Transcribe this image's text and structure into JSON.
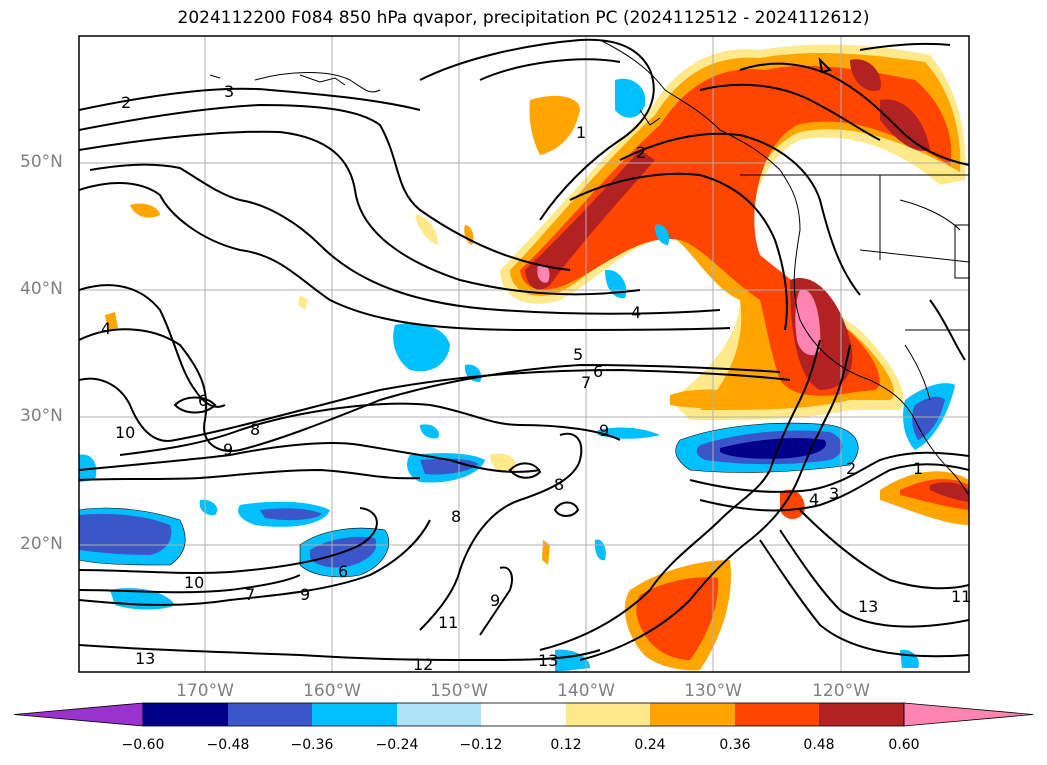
{
  "title": "2024112200 F084 850 hPa qvapor, precipitation PC (2024112512 - 2024112612)",
  "map": {
    "lat_labels": [
      "50°N",
      "40°N",
      "30°N",
      "20°N"
    ],
    "lon_labels": [
      "170°W",
      "160°W",
      "150°W",
      "140°W",
      "130°W",
      "120°W"
    ],
    "contour_labels": [
      "2",
      "3",
      "1",
      "2",
      "4",
      "5",
      "6",
      "7",
      "6",
      "10",
      "8",
      "9",
      "9",
      "8",
      "8",
      "10",
      "6",
      "7",
      "9",
      "11",
      "9",
      "13",
      "12",
      "13",
      "2",
      "4",
      "3",
      "1",
      "11",
      "13",
      "4"
    ]
  },
  "colorbar": {
    "ticks": [
      "−0.60",
      "−0.48",
      "−0.36",
      "−0.24",
      "−0.12",
      "0.12",
      "0.24",
      "0.36",
      "0.48",
      "0.60"
    ],
    "colors": [
      "#9a32cd",
      "#00008b",
      "#3a56c8",
      "#00bfff",
      "#aee2f7",
      "#ffffff",
      "#ffe98a",
      "#ffa500",
      "#ff4500",
      "#b22222",
      "#ff85b0"
    ]
  }
}
